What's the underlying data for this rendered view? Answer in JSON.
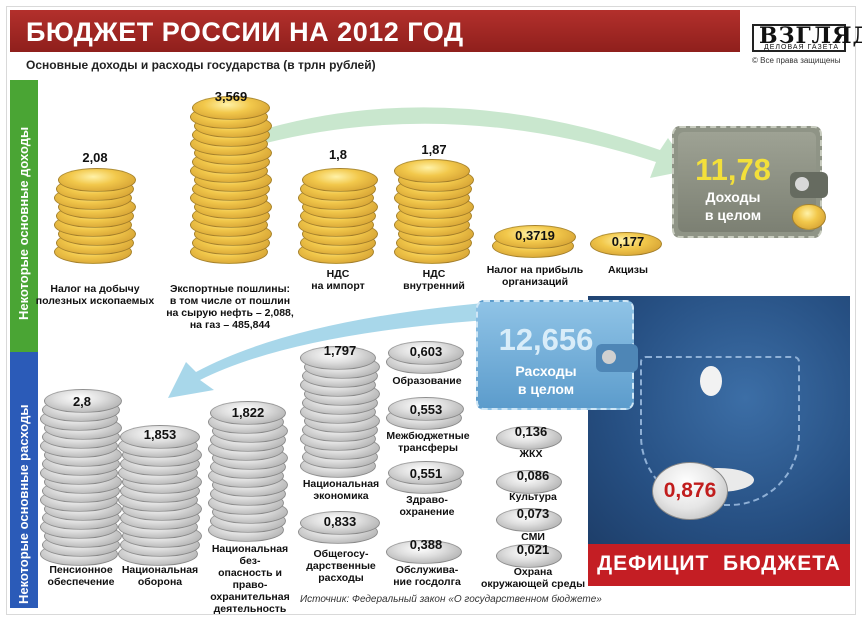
{
  "header": {
    "title": "БЮДЖЕТ РОССИИ НА 2012 ГОД",
    "subtitle": "Основные доходы и расходы государства (в трлн рублей)"
  },
  "logo": {
    "name": "ВЗГЛЯД",
    "tagline": "ДЕЛОВАЯ ГАЗЕТА",
    "copyright": "© Все права защищены"
  },
  "side": {
    "income": "Некоторые основные доходы",
    "expenses": "Некоторые основные расходы"
  },
  "income": {
    "items": [
      {
        "value": "2,08",
        "label": "Налог на добычу\nполезных ископаемых"
      },
      {
        "value": "3,569",
        "label": "Экспортные пошлины:\nв том числе от пошлин\nна сырую нефть – 2,088,\nна газ – 485,844"
      },
      {
        "value": "1,8",
        "label": "НДС\nна импорт"
      },
      {
        "value": "1,87",
        "label": "НДС\nвнутренний"
      },
      {
        "value": "0,3719",
        "label": "Налог на прибыль\nорганизаций"
      },
      {
        "value": "0,177",
        "label": "Акцизы"
      }
    ],
    "total_value": "11,78",
    "total_label": "Доходы\nв целом"
  },
  "expenses": {
    "items": [
      {
        "value": "2,8",
        "label": "Пенсионное\nобеспечение"
      },
      {
        "value": "1,853",
        "label": "Национальная\nоборона"
      },
      {
        "value": "1,822",
        "label": "Национальная без-\nопасность и право-\nохранительная\nдеятельность"
      },
      {
        "value": "1,797",
        "label": "Национальная\nэкономика"
      },
      {
        "value": "0,833",
        "label": "Общегосу-\nдарственные\nрасходы"
      },
      {
        "value": "0,603",
        "label": "Образование"
      },
      {
        "value": "0,553",
        "label": "Межбюджетные\nтрансферы"
      },
      {
        "value": "0,551",
        "label": "Здраво-\nохранение"
      },
      {
        "value": "0,388",
        "label": "Обслужива-\nние госдолга"
      },
      {
        "value": "0,136",
        "label": "ЖКХ"
      },
      {
        "value": "0,086",
        "label": "Культура"
      },
      {
        "value": "0,073",
        "label": "СМИ"
      },
      {
        "value": "0,021",
        "label": "Охрана\nокружающей среды"
      }
    ],
    "total_value": "12,656",
    "total_label": "Расходы\nв целом"
  },
  "deficit": {
    "value": "0,876",
    "label": "ДЕФИЦИТ  БЮДЖЕТА"
  },
  "source": "Источник: Федеральный закон «О государственном бюджете»",
  "colors": {
    "title_bar": "#a62a27",
    "income_side": "#4aa534",
    "expense_side": "#2b5bb8",
    "gold": "#f2c84b",
    "silver": "#dedede",
    "deficit": "#c41e24"
  }
}
